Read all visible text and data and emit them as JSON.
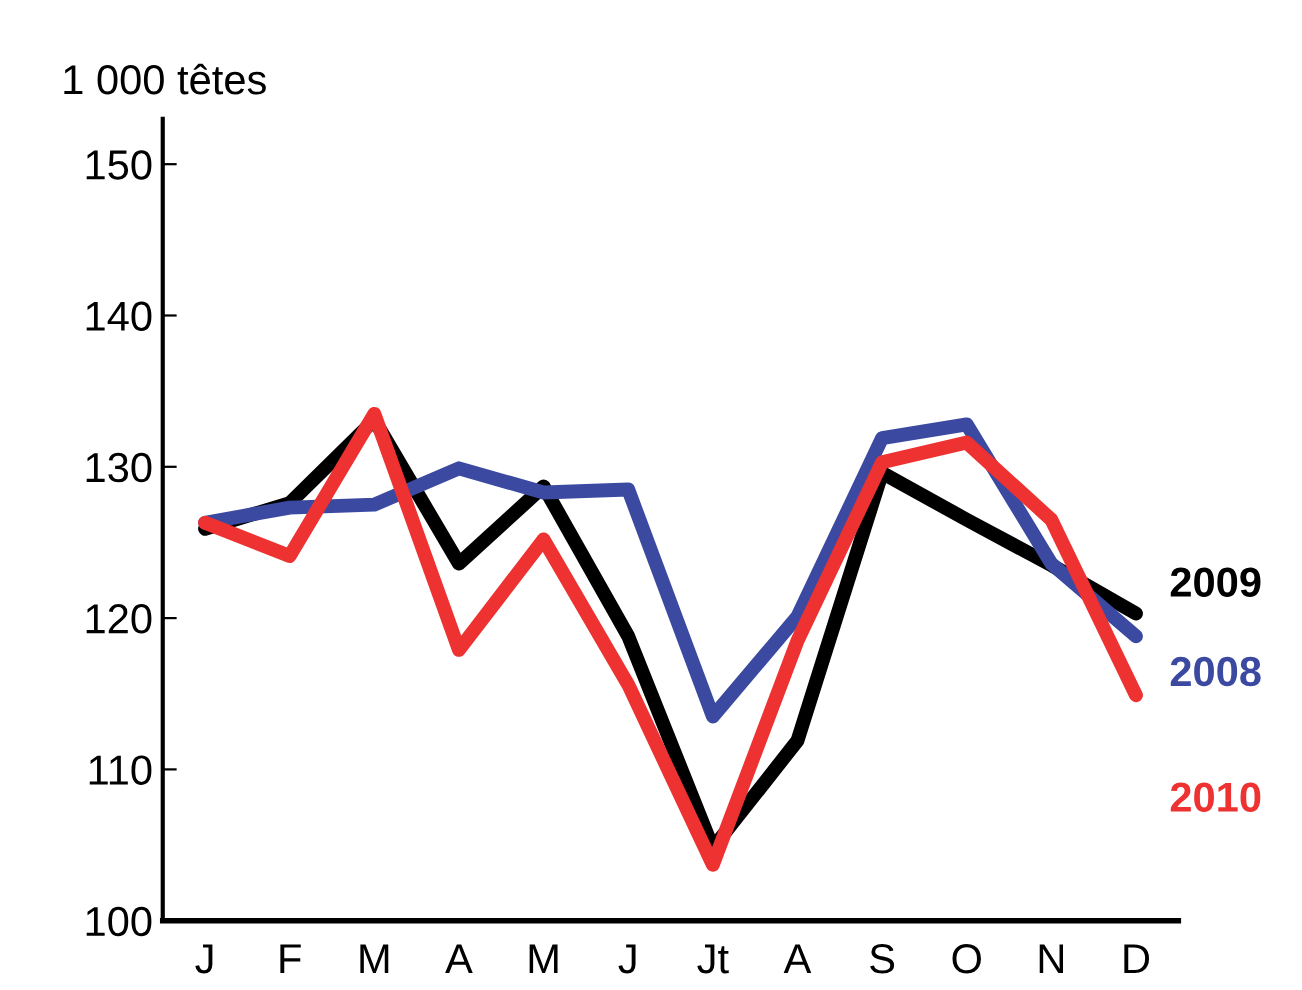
{
  "chart_data": {
    "type": "line",
    "ylabel": "1 000 têtes",
    "categories": [
      "J",
      "F",
      "M",
      "A",
      "M",
      "J",
      "Jt",
      "A",
      "S",
      "O",
      "N",
      "D"
    ],
    "series": [
      {
        "name": "2009",
        "color": "#000000",
        "values": [
          125.9,
          127.6,
          133.1,
          123.6,
          128.7,
          118.8,
          104.8,
          111.9,
          129.6,
          126.5,
          123.5,
          120.3
        ]
      },
      {
        "name": "2008",
        "color": "#3b4aa0",
        "values": [
          126.3,
          127.3,
          127.5,
          129.9,
          128.3,
          128.5,
          113.5,
          120.1,
          131.9,
          132.8,
          123.6,
          118.8
        ]
      },
      {
        "name": "2010",
        "color": "#ee3131",
        "values": [
          126.3,
          124.1,
          133.5,
          117.9,
          125.2,
          115.6,
          103.7,
          118.5,
          130.3,
          131.6,
          126.5,
          114.9
        ]
      }
    ],
    "ylim": [
      100,
      153
    ],
    "yticks": [
      100,
      110,
      120,
      130,
      140,
      150
    ],
    "grid": false,
    "legend": false,
    "marker": "none",
    "line_style": "solid"
  }
}
